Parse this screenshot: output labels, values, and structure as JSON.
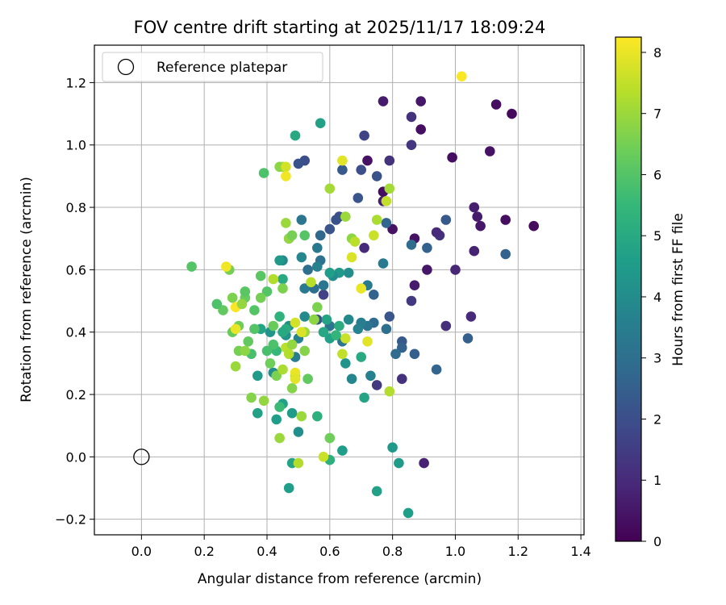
{
  "chart_data": {
    "type": "scatter",
    "title": "FOV centre drift starting at 2025/11/17 18:09:24",
    "xlabel": "Angular distance from reference (arcmin)",
    "ylabel": "Rotation from reference (arcmin)",
    "xlim": [
      -0.15,
      1.41
    ],
    "ylim": [
      -0.25,
      1.32
    ],
    "xticks": [
      "0.0",
      "0.2",
      "0.4",
      "0.6",
      "0.8",
      "1.0",
      "1.2",
      "1.4"
    ],
    "yticks": [
      "−0.2",
      "0.0",
      "0.2",
      "0.4",
      "0.6",
      "0.8",
      "1.0",
      "1.2"
    ],
    "grid": true,
    "legend": {
      "placement": "top-left",
      "label": "Reference platepar"
    },
    "reference_point": [
      0.0,
      0.0
    ],
    "colorbar": {
      "label": "Hours from first FF file",
      "min": 0,
      "max": 8.25,
      "ticks": [
        "0",
        "1",
        "2",
        "3",
        "4",
        "5",
        "6",
        "7",
        "8"
      ],
      "colormap": [
        "#440154",
        "#482878",
        "#3e4989",
        "#31688e",
        "#26828e",
        "#1f9e89",
        "#35b779",
        "#6ece58",
        "#b5de2b",
        "#fde725"
      ]
    },
    "points": [
      [
        1.25,
        0.74,
        0.2
      ],
      [
        1.18,
        1.1,
        0.2
      ],
      [
        1.16,
        0.76,
        0.3
      ],
      [
        1.13,
        1.13,
        0.3
      ],
      [
        1.11,
        0.98,
        0.4
      ],
      [
        1.08,
        0.74,
        0.5
      ],
      [
        1.07,
        0.77,
        0.6
      ],
      [
        1.06,
        0.8,
        0.7
      ],
      [
        1.06,
        0.66,
        0.8
      ],
      [
        1.05,
        0.45,
        1.0
      ],
      [
        1.0,
        0.6,
        0.9
      ],
      [
        0.99,
        0.96,
        0.3
      ],
      [
        0.97,
        0.42,
        1.1
      ],
      [
        0.95,
        0.71,
        1.2
      ],
      [
        0.94,
        0.72,
        1.0
      ],
      [
        0.91,
        0.6,
        0.5
      ],
      [
        0.9,
        -0.02,
        0.8
      ],
      [
        0.89,
        1.14,
        0.5
      ],
      [
        0.89,
        1.05,
        0.3
      ],
      [
        0.87,
        0.55,
        0.6
      ],
      [
        0.87,
        0.7,
        0.4
      ],
      [
        0.86,
        1.0,
        1.3
      ],
      [
        0.86,
        1.09,
        1.2
      ],
      [
        0.86,
        0.5,
        1.4
      ],
      [
        0.83,
        0.25,
        1.2
      ],
      [
        0.8,
        0.73,
        0.4
      ],
      [
        0.79,
        0.95,
        1.2
      ],
      [
        0.77,
        0.82,
        0.7
      ],
      [
        0.77,
        1.14,
        0.6
      ],
      [
        0.77,
        0.85,
        0.3
      ],
      [
        0.75,
        0.23,
        1.4
      ],
      [
        0.72,
        0.95,
        0.4
      ],
      [
        0.71,
        0.67,
        1.0
      ],
      [
        0.71,
        1.03,
        1.7
      ],
      [
        0.7,
        0.92,
        2.0
      ],
      [
        0.69,
        0.83,
        2.2
      ],
      [
        0.75,
        0.9,
        2.1
      ],
      [
        0.64,
        0.92,
        2.3
      ],
      [
        0.63,
        0.77,
        2.0
      ],
      [
        0.62,
        0.76,
        2.1
      ],
      [
        0.6,
        0.73,
        2.2
      ],
      [
        0.58,
        0.52,
        1.6
      ],
      [
        0.57,
        0.71,
        2.4
      ],
      [
        0.56,
        0.44,
        2.1
      ],
      [
        0.52,
        0.95,
        2.0
      ],
      [
        0.5,
        0.94,
        2.1
      ],
      [
        0.47,
        0.7,
        1.8
      ],
      [
        1.16,
        0.65,
        2.6
      ],
      [
        1.04,
        0.38,
        2.5
      ],
      [
        0.97,
        0.76,
        2.3
      ],
      [
        0.94,
        0.28,
        2.7
      ],
      [
        0.91,
        0.67,
        2.6
      ],
      [
        0.87,
        0.33,
        2.5
      ],
      [
        0.86,
        0.68,
        2.9
      ],
      [
        0.83,
        0.37,
        2.3
      ],
      [
        0.83,
        0.35,
        2.6
      ],
      [
        0.81,
        0.33,
        2.9
      ],
      [
        0.79,
        0.45,
        2.2
      ],
      [
        0.78,
        0.75,
        2.7
      ],
      [
        0.78,
        0.41,
        3.0
      ],
      [
        0.77,
        0.62,
        3.4
      ],
      [
        0.74,
        0.43,
        2.9
      ],
      [
        0.74,
        0.52,
        2.6
      ],
      [
        0.72,
        0.42,
        3.2
      ],
      [
        0.72,
        0.55,
        3.4
      ],
      [
        0.73,
        0.26,
        3.6
      ],
      [
        0.7,
        0.43,
        3.5
      ],
      [
        0.69,
        0.41,
        3.7
      ],
      [
        0.67,
        0.25,
        3.8
      ],
      [
        0.66,
        0.44,
        3.9
      ],
      [
        0.66,
        0.59,
        4.1
      ],
      [
        0.65,
        0.3,
        4.3
      ],
      [
        0.64,
        0.37,
        3.2
      ],
      [
        0.63,
        0.59,
        4.4
      ],
      [
        0.61,
        0.58,
        4.0
      ],
      [
        0.6,
        0.59,
        4.6
      ],
      [
        0.6,
        0.42,
        3.2
      ],
      [
        0.6,
        0.38,
        4.7
      ],
      [
        0.58,
        0.55,
        3.2
      ],
      [
        0.57,
        0.71,
        2.8
      ],
      [
        0.57,
        0.63,
        3.1
      ],
      [
        0.56,
        0.67,
        3.3
      ],
      [
        0.56,
        0.61,
        3.6
      ],
      [
        0.55,
        0.54,
        3.0
      ],
      [
        0.55,
        0.44,
        4.2
      ],
      [
        0.53,
        0.6,
        3.0
      ],
      [
        0.52,
        0.54,
        3.4
      ],
      [
        0.51,
        0.76,
        3.2
      ],
      [
        0.51,
        0.64,
        3.8
      ],
      [
        0.52,
        0.45,
        3.9
      ],
      [
        0.5,
        0.38,
        3.7
      ],
      [
        0.49,
        0.32,
        3.5
      ],
      [
        0.5,
        0.08,
        4.1
      ],
      [
        0.48,
        0.14,
        4.5
      ],
      [
        0.47,
        0.42,
        4.0
      ],
      [
        0.46,
        0.39,
        4.2
      ],
      [
        0.45,
        0.63,
        3.9
      ],
      [
        0.44,
        0.63,
        4.4
      ],
      [
        0.43,
        0.12,
        4.6
      ],
      [
        0.42,
        0.27,
        4.0
      ],
      [
        0.41,
        0.4,
        4.3
      ],
      [
        0.38,
        0.41,
        4.8
      ],
      [
        0.37,
        0.26,
        4.5
      ],
      [
        0.37,
        0.14,
        4.7
      ],
      [
        0.47,
        -0.1,
        4.6
      ],
      [
        0.48,
        -0.02,
        4.8
      ],
      [
        0.56,
        0.13,
        5.2
      ],
      [
        0.58,
        0.4,
        4.9
      ],
      [
        0.57,
        1.07,
        4.7
      ],
      [
        0.49,
        1.03,
        5.0
      ],
      [
        0.45,
        0.57,
        5.0
      ],
      [
        0.45,
        0.17,
        4.7
      ],
      [
        0.64,
        0.02,
        4.6
      ],
      [
        0.7,
        0.32,
        5.0
      ],
      [
        0.71,
        0.19,
        4.8
      ],
      [
        0.75,
        -0.11,
        4.7
      ],
      [
        0.8,
        0.03,
        4.4
      ],
      [
        0.82,
        -0.02,
        4.5
      ],
      [
        0.85,
        -0.18,
        4.6
      ],
      [
        0.6,
        -0.01,
        5.2
      ],
      [
        0.46,
        0.41,
        5.1
      ],
      [
        0.45,
        0.4,
        5.0
      ],
      [
        0.44,
        0.45,
        5.3
      ],
      [
        0.43,
        0.34,
        5.5
      ],
      [
        0.44,
        0.16,
        5.6
      ],
      [
        0.42,
        0.36,
        5.9
      ],
      [
        0.4,
        0.34,
        5.8
      ],
      [
        0.4,
        0.53,
        6.0
      ],
      [
        0.39,
        0.91,
        5.9
      ],
      [
        0.38,
        0.58,
        6.1
      ],
      [
        0.36,
        0.47,
        6.0
      ],
      [
        0.35,
        0.33,
        5.8
      ],
      [
        0.34,
        0.37,
        6.2
      ],
      [
        0.33,
        0.51,
        6.3
      ],
      [
        0.33,
        0.53,
        6.1
      ],
      [
        0.31,
        0.42,
        6.4
      ],
      [
        0.31,
        0.34,
        6.5
      ],
      [
        0.29,
        0.4,
        6.3
      ],
      [
        0.29,
        0.51,
        6.6
      ],
      [
        0.28,
        0.6,
        6.5
      ],
      [
        0.26,
        0.47,
        6.2
      ],
      [
        0.24,
        0.49,
        5.9
      ],
      [
        0.16,
        0.61,
        6.0
      ],
      [
        0.3,
        0.29,
        7.0
      ],
      [
        0.33,
        0.34,
        6.8
      ],
      [
        0.35,
        0.19,
        6.7
      ],
      [
        0.39,
        0.18,
        6.9
      ],
      [
        0.41,
        0.3,
        6.4
      ],
      [
        0.43,
        0.26,
        6.6
      ],
      [
        0.44,
        0.06,
        7.0
      ],
      [
        0.45,
        0.28,
        7.2
      ],
      [
        0.46,
        0.35,
        7.4
      ],
      [
        0.47,
        0.33,
        7.3
      ],
      [
        0.49,
        0.26,
        7.1
      ],
      [
        0.48,
        0.22,
        6.7
      ],
      [
        0.51,
        0.13,
        7.0
      ],
      [
        0.52,
        0.34,
        6.7
      ],
      [
        0.52,
        0.4,
        7.0
      ],
      [
        0.53,
        0.25,
        6.2
      ],
      [
        0.5,
        -0.02,
        7.3
      ],
      [
        0.45,
        0.93,
        7.2
      ],
      [
        0.44,
        0.93,
        6.8
      ],
      [
        0.46,
        0.93,
        7.7
      ],
      [
        0.46,
        0.75,
        7.0
      ],
      [
        0.47,
        0.7,
        6.9
      ],
      [
        0.48,
        0.71,
        6.5
      ],
      [
        0.52,
        0.71,
        6.0
      ],
      [
        0.54,
        0.56,
        7.4
      ],
      [
        0.56,
        0.48,
        6.6
      ],
      [
        0.58,
        0.0,
        7.6
      ],
      [
        0.6,
        0.06,
        6.4
      ],
      [
        0.6,
        0.86,
        7.1
      ],
      [
        0.65,
        0.77,
        7.0
      ],
      [
        0.67,
        0.7,
        6.8
      ],
      [
        0.68,
        0.69,
        7.4
      ],
      [
        0.72,
        0.37,
        7.9
      ],
      [
        0.74,
        0.71,
        7.6
      ],
      [
        0.75,
        0.76,
        7.2
      ],
      [
        0.78,
        0.82,
        7.5
      ],
      [
        0.79,
        0.86,
        7.1
      ],
      [
        0.79,
        0.21,
        7.3
      ],
      [
        0.67,
        0.64,
        7.8
      ],
      [
        0.64,
        0.95,
        7.9
      ],
      [
        0.65,
        0.38,
        7.6
      ],
      [
        0.64,
        0.33,
        7.5
      ],
      [
        0.7,
        0.54,
        8.0
      ],
      [
        0.46,
        0.9,
        8.1
      ],
      [
        0.49,
        0.27,
        8.0
      ],
      [
        0.49,
        0.25,
        7.9
      ],
      [
        0.3,
        0.41,
        8.0
      ],
      [
        0.27,
        0.61,
        8.1
      ],
      [
        0.3,
        0.48,
        8.2
      ],
      [
        1.02,
        1.22,
        8.2
      ],
      [
        0.49,
        0.43,
        7.7
      ],
      [
        0.51,
        0.4,
        7.8
      ],
      [
        0.48,
        0.36,
        6.9
      ],
      [
        0.42,
        0.42,
        6.3
      ],
      [
        0.38,
        0.51,
        6.5
      ],
      [
        0.42,
        0.57,
        7.3
      ],
      [
        0.45,
        0.54,
        6.6
      ],
      [
        0.32,
        0.49,
        6.9
      ],
      [
        0.36,
        0.41,
        6.0
      ],
      [
        0.55,
        0.44,
        6.8
      ],
      [
        0.63,
        0.42,
        5.1
      ],
      [
        0.59,
        0.44,
        4.8
      ],
      [
        0.62,
        0.39,
        5.4
      ]
    ]
  }
}
